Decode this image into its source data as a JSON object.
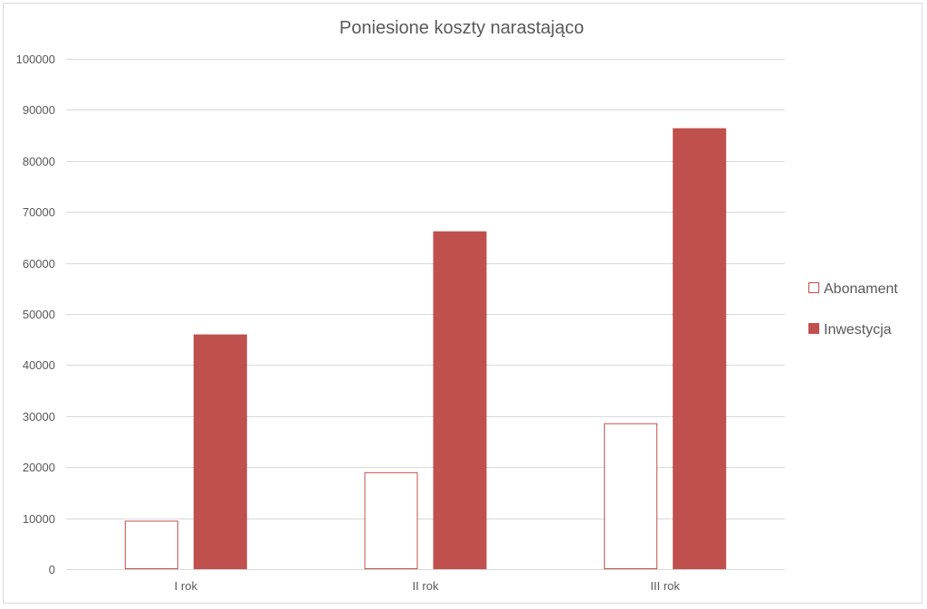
{
  "chart_data": {
    "type": "bar",
    "title": "Poniesione koszty  narastająco",
    "xlabel": "",
    "ylabel": "",
    "categories": [
      "I rok",
      "II rok",
      "III rok"
    ],
    "series": [
      {
        "name": "Abonament",
        "values": [
          9500,
          19000,
          28600
        ],
        "color": "#ffffff",
        "stroke": "#c0504d"
      },
      {
        "name": "Inwestycja",
        "values": [
          46000,
          66200,
          86400
        ],
        "color": "#c0504d",
        "stroke": "#c0504d"
      }
    ],
    "ylim": [
      0,
      100000
    ],
    "yticks": [
      0,
      10000,
      20000,
      30000,
      40000,
      50000,
      60000,
      70000,
      80000,
      90000,
      100000
    ],
    "grid": true,
    "legend_position": "right"
  }
}
